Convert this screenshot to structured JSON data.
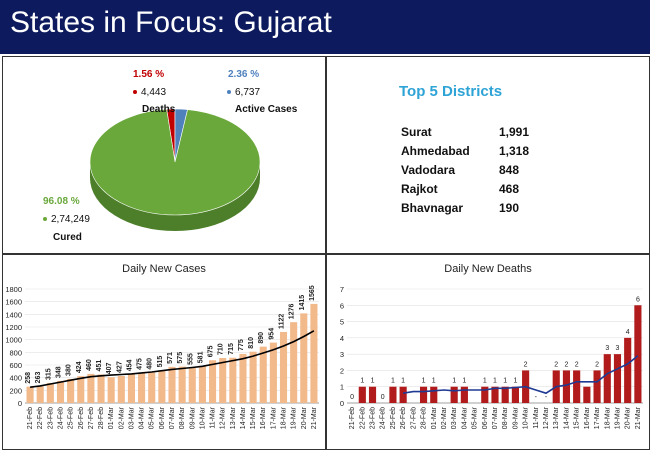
{
  "header": {
    "title": "States in Focus: Gujarat"
  },
  "colors": {
    "header_bg": "#0d1b5e",
    "cured": "#6aa83c",
    "deaths": "#c00000",
    "active": "#4f81bd",
    "districts_title": "#2ea3d6",
    "bar_cases": "#f2b98b",
    "bar_deaths": "#b11b1b",
    "trend_line": "#000000",
    "deaths_trend_line": "#1f3a93"
  },
  "pie": {
    "deaths": {
      "percent": "1.56 %",
      "count": "4,443",
      "label": "Deaths"
    },
    "active": {
      "percent": "2.36 %",
      "count": "6,737",
      "label": "Active Cases"
    },
    "cured": {
      "percent": "96.08 %",
      "count": "2,74,249",
      "label": "Cured"
    }
  },
  "districts": {
    "title": "Top 5 Districts",
    "items": [
      {
        "name": "Surat",
        "value": "1,991"
      },
      {
        "name": "Ahmedabad",
        "value": "1,318"
      },
      {
        "name": "Vadodara",
        "value": "848"
      },
      {
        "name": "Rajkot",
        "value": "468"
      },
      {
        "name": "Bhavnagar",
        "value": "190"
      }
    ]
  },
  "chart_data": [
    {
      "type": "pie",
      "categories": [
        "Cured",
        "Active Cases",
        "Deaths"
      ],
      "values": [
        96.08,
        2.36,
        1.56
      ],
      "counts": [
        "2,74,249",
        "6,737",
        "4,443"
      ]
    },
    {
      "type": "bar",
      "title": "Daily New Cases",
      "categories": [
        "21-Feb",
        "22-Feb",
        "23-Feb",
        "24-Feb",
        "25-Feb",
        "26-Feb",
        "27-Feb",
        "28-Feb",
        "01-Mar",
        "02-Mar",
        "03-Mar",
        "04-Mar",
        "05-Mar",
        "06-Mar",
        "07-Mar",
        "08-Mar",
        "09-Mar",
        "10-Mar",
        "11-Mar",
        "12-Mar",
        "13-Mar",
        "14-Mar",
        "15-Mar",
        "16-Mar",
        "17-Mar",
        "18-Mar",
        "19-Mar",
        "20-Mar",
        "21-Mar"
      ],
      "values": [
        258,
        263,
        315,
        348,
        380,
        424,
        460,
        451,
        407,
        427,
        454,
        475,
        480,
        515,
        571,
        575,
        555,
        581,
        675,
        710,
        715,
        775,
        810,
        890,
        954,
        1122,
        1276,
        1415,
        1565
      ],
      "ylim": [
        0,
        1800
      ],
      "yticks": [
        0,
        200,
        400,
        600,
        800,
        1000,
        1200,
        1400,
        1600,
        1800
      ],
      "trend": [
        250,
        270,
        300,
        330,
        360,
        390,
        415,
        430,
        440,
        450,
        460,
        475,
        490,
        510,
        530,
        545,
        560,
        580,
        610,
        640,
        670,
        700,
        740,
        790,
        840,
        900,
        970,
        1050,
        1140
      ]
    },
    {
      "type": "bar",
      "title": "Daily New Deaths",
      "categories": [
        "21-Feb",
        "22-Feb",
        "23-Feb",
        "24-Feb",
        "25-Feb",
        "26-Feb",
        "27-Feb",
        "28-Feb",
        "01-Mar",
        "02-Mar",
        "03-Mar",
        "04-Mar",
        "05-Mar",
        "06-Mar",
        "07-Mar",
        "08-Mar",
        "09-Mar",
        "10-Mar",
        "11-Mar",
        "12-Mar",
        "13-Mar",
        "14-Mar",
        "15-Mar",
        "16-Mar",
        "17-Mar",
        "18-Mar",
        "19-Mar",
        "20-Mar",
        "21-Mar"
      ],
      "values": [
        0,
        1,
        1,
        0,
        1,
        1,
        0,
        1,
        1,
        0,
        1,
        1,
        0,
        1,
        1,
        1,
        1,
        2,
        0,
        0,
        2,
        2,
        2,
        1,
        2,
        3,
        3,
        4,
        6
      ],
      "data_labels": [
        "0",
        "1",
        "1",
        "0",
        "1",
        "1",
        "",
        "1",
        "1",
        "",
        "1",
        "1",
        "",
        "1",
        "1",
        "1",
        "1",
        "2",
        "-",
        "-",
        "2",
        "2",
        "2",
        "",
        "2",
        "3",
        "3",
        "4",
        "6"
      ],
      "ylim": [
        0,
        7
      ],
      "yticks": [
        0,
        1,
        2,
        3,
        4,
        5,
        6,
        7
      ],
      "trend": [
        null,
        null,
        null,
        null,
        null,
        0.6,
        0.7,
        0.7,
        0.75,
        0.8,
        0.75,
        0.8,
        0.8,
        0.8,
        0.9,
        0.9,
        0.95,
        1.0,
        0.8,
        0.6,
        1.0,
        1.1,
        1.3,
        1.3,
        1.3,
        1.8,
        2.1,
        2.4,
        2.9
      ]
    }
  ]
}
